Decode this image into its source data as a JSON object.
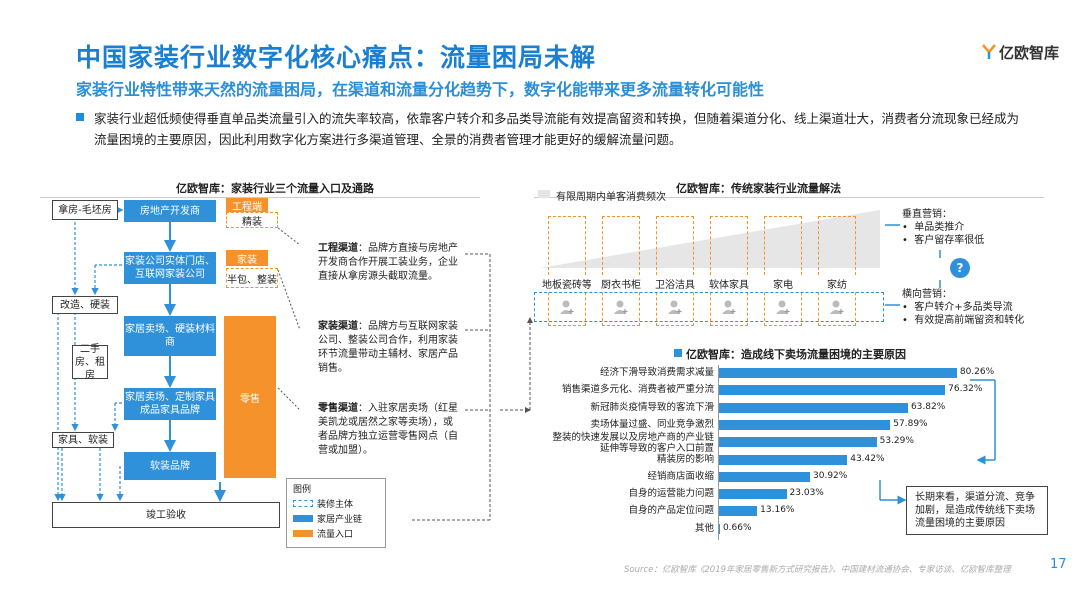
{
  "header": {
    "title": "中国家装行业数字化核心痛点：流量困局未解",
    "subtitle": "家装行业特性带来天然的流量困局，在渠道和流量分化趋势下，数字化能带来更多流量转化可能性",
    "logo": "亿欧智库"
  },
  "intro": "家装行业超低频使得垂直单品类流量引入的流失率较高，依靠客户转介和多品类导流能有效提高留资和转换，但随着渠道分化、线上渠道壮大，消费者分流现象已经成为流量困境的主要原因，因此利用数字化方案进行多渠道管理、全景的消费者管理才能更好的缓解流量问题。",
  "left_panel": {
    "title": "亿欧智库：家装行业三个流量入口及通路",
    "nodes": {
      "rough": "拿房-毛坯房",
      "developer": "房地产开发商",
      "eng_tag": "工程端",
      "eng_sub": "精装",
      "decor_co": "家装公司实体门店、互联网家装公司",
      "decor_tag": "家装",
      "decor_sub": "半包、整装",
      "renovate": "改造、硬装",
      "second": "二手房、租房",
      "mall": "家居卖场、硬装材料商",
      "retail": "零售",
      "custom": "家居卖场、定制家具成品家具品牌",
      "furnish": "家具、软装",
      "soft_brand": "软装品牌",
      "complete": "竣工验收"
    },
    "channels": [
      {
        "name": "工程渠道",
        "desc": "：品牌方直接与房地产开发商合作开展工装业务，企业直接从拿房源头截取流量。"
      },
      {
        "name": "家装渠道",
        "desc": "：品牌方与互联网家装公司、整装公司合作，利用家装环节流量带动主辅材、家居产品销售。"
      },
      {
        "name": "零售渠道",
        "desc": "：入驻家居卖场（红星美凯龙或居然之家等卖场），或者品牌方独立运营零售网点（自营或加盟）。"
      }
    ],
    "legend": {
      "title": "图例",
      "items": [
        "装修主体",
        "家居产业链",
        "流量入口"
      ]
    }
  },
  "top_right": {
    "title": "亿欧智库：传统家装行业流量解法",
    "bar_label": "有限周期内单客消费频次",
    "categories": [
      "地板瓷砖等",
      "厨衣书柜",
      "卫浴洁具",
      "软体家具",
      "家电",
      "家纺"
    ],
    "vertical": {
      "title": "垂直营销：",
      "items": [
        "单品类推介",
        "客户留存率很低"
      ]
    },
    "horizontal": {
      "title": "横向营销：",
      "items": [
        "客户转介+多品类导流",
        "有效提高前端留资和转化"
      ]
    },
    "q": "?"
  },
  "chart_data": {
    "type": "bar",
    "orientation": "horizontal",
    "title": "亿欧智库：造成线下卖场流量困境的主要原因",
    "categories": [
      "经济下滑导致消费需求减量",
      "销售渠道多元化、消费者被严重分流",
      "新冠肺炎疫情导致的客流下滑",
      "卖场体量过盛、同业竞争激烈",
      "整装的快速发展以及房地产商的产业链延伸等导致的客户入口前置",
      "精装房的影响",
      "经销商店面收缩",
      "自身的运营能力问题",
      "自身的产品定位问题",
      "其他"
    ],
    "values": [
      80.26,
      76.32,
      63.82,
      57.89,
      53.29,
      43.42,
      30.92,
      23.03,
      13.16,
      0.66
    ],
    "value_labels": [
      "80.26%",
      "76.32%",
      "63.82%",
      "57.89%",
      "53.29%",
      "43.42%",
      "30.92%",
      "23.03%",
      "13.16%",
      "0.66%"
    ],
    "xlim": [
      0,
      90
    ],
    "color": "#2e91d9",
    "annotation": "长期来看，渠道分流、竞争加剧，是造成传统线下卖场流量困境的主要原因"
  },
  "footer": {
    "source": "Source：亿欧智库《2019年家居零售新方式研究报告》、中国建材流通协会、专家访谈、亿欧智库整理",
    "page": "17"
  }
}
